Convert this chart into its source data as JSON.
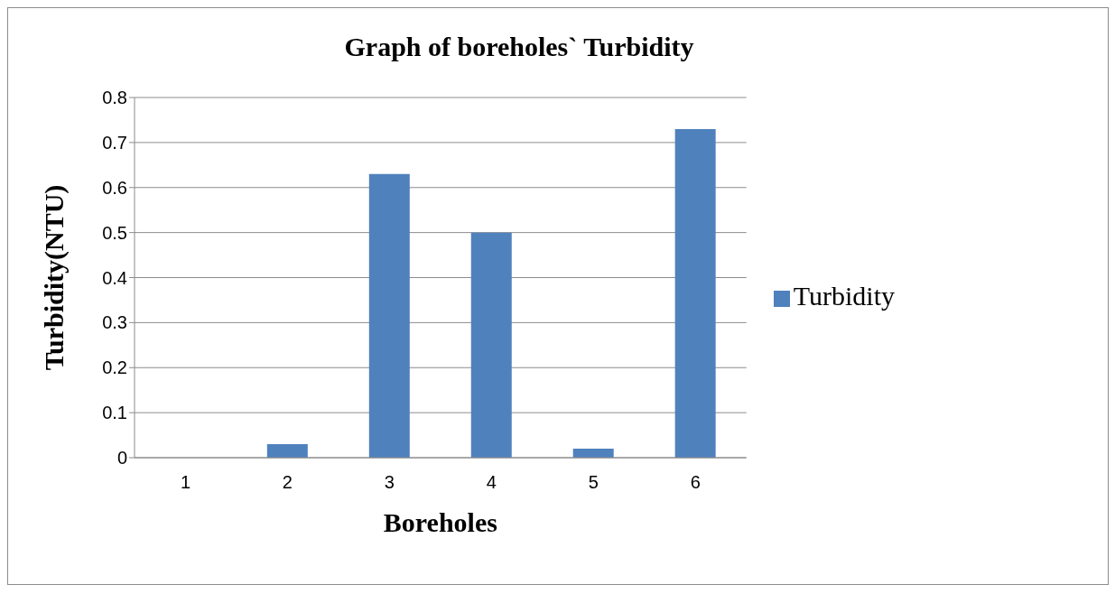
{
  "chart_data": {
    "type": "bar",
    "title": "Graph of boreholes` Turbidity",
    "xlabel": "Boreholes",
    "ylabel": "Turbidity(NTU)",
    "categories": [
      "1",
      "2",
      "3",
      "4",
      "5",
      "6"
    ],
    "series": [
      {
        "name": "Turbidity",
        "color": "#4f81bd",
        "values": [
          0,
          0.03,
          0.63,
          0.5,
          0.02,
          0.73
        ]
      }
    ],
    "ylim": [
      0,
      0.8
    ],
    "yticks": [
      0,
      0.1,
      0.2,
      0.3,
      0.4,
      0.5,
      0.6,
      0.7,
      0.8
    ],
    "grid": "y",
    "legend": "right"
  }
}
